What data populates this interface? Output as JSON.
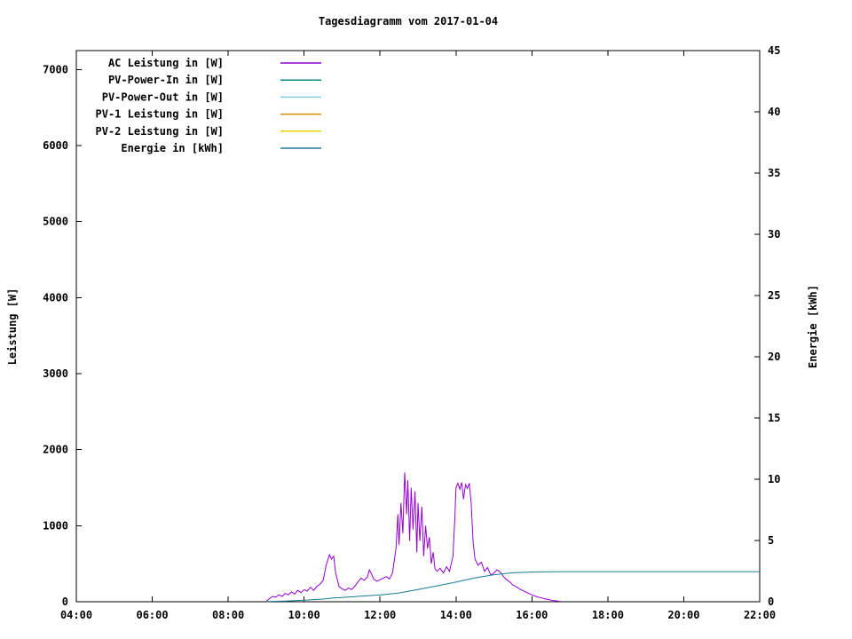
{
  "chart_data": {
    "type": "line",
    "title": "Tagesdiagramm vom 2017-01-04",
    "ylabel_left": "Leistung [W]",
    "ylabel_right": "Energie [kWh]",
    "grid": false,
    "legend_position": "top-left",
    "x_range_hours": [
      4,
      22
    ],
    "ylim_left": [
      0,
      7250
    ],
    "ylim_right": [
      0,
      45
    ],
    "x_ticks": [
      {
        "h": 4,
        "label": "04:00"
      },
      {
        "h": 6,
        "label": "06:00"
      },
      {
        "h": 8,
        "label": "08:00"
      },
      {
        "h": 10,
        "label": "10:00"
      },
      {
        "h": 12,
        "label": "12:00"
      },
      {
        "h": 14,
        "label": "14:00"
      },
      {
        "h": 16,
        "label": "16:00"
      },
      {
        "h": 18,
        "label": "18:00"
      },
      {
        "h": 20,
        "label": "20:00"
      },
      {
        "h": 22,
        "label": "22:00"
      }
    ],
    "y_ticks_left": [
      0,
      1000,
      2000,
      3000,
      4000,
      5000,
      6000,
      7000
    ],
    "y_ticks_right": [
      0,
      5,
      10,
      15,
      20,
      25,
      30,
      35,
      40,
      45
    ],
    "series": [
      {
        "name": "AC Leistung in [W]",
        "color": "#9400d3",
        "axis": "left",
        "points": [
          [
            9.0,
            5
          ],
          [
            9.08,
            40
          ],
          [
            9.17,
            70
          ],
          [
            9.25,
            60
          ],
          [
            9.33,
            90
          ],
          [
            9.42,
            70
          ],
          [
            9.5,
            110
          ],
          [
            9.58,
            90
          ],
          [
            9.67,
            130
          ],
          [
            9.75,
            100
          ],
          [
            9.83,
            150
          ],
          [
            9.92,
            120
          ],
          [
            10.0,
            160
          ],
          [
            10.08,
            140
          ],
          [
            10.17,
            190
          ],
          [
            10.25,
            150
          ],
          [
            10.33,
            200
          ],
          [
            10.42,
            230
          ],
          [
            10.5,
            280
          ],
          [
            10.58,
            480
          ],
          [
            10.67,
            620
          ],
          [
            10.72,
            560
          ],
          [
            10.78,
            600
          ],
          [
            10.83,
            380
          ],
          [
            10.92,
            200
          ],
          [
            11.0,
            170
          ],
          [
            11.08,
            150
          ],
          [
            11.17,
            180
          ],
          [
            11.25,
            160
          ],
          [
            11.33,
            200
          ],
          [
            11.42,
            260
          ],
          [
            11.5,
            310
          ],
          [
            11.58,
            280
          ],
          [
            11.67,
            330
          ],
          [
            11.72,
            420
          ],
          [
            11.78,
            360
          ],
          [
            11.83,
            300
          ],
          [
            11.92,
            270
          ],
          [
            12.0,
            290
          ],
          [
            12.08,
            310
          ],
          [
            12.17,
            330
          ],
          [
            12.25,
            300
          ],
          [
            12.33,
            380
          ],
          [
            12.42,
            700
          ],
          [
            12.47,
            1150
          ],
          [
            12.5,
            750
          ],
          [
            12.55,
            1300
          ],
          [
            12.6,
            900
          ],
          [
            12.65,
            1700
          ],
          [
            12.7,
            1150
          ],
          [
            12.73,
            1600
          ],
          [
            12.78,
            800
          ],
          [
            12.82,
            1500
          ],
          [
            12.87,
            950
          ],
          [
            12.92,
            1450
          ],
          [
            12.97,
            650
          ],
          [
            13.0,
            1300
          ],
          [
            13.05,
            800
          ],
          [
            13.1,
            1250
          ],
          [
            13.15,
            600
          ],
          [
            13.2,
            1000
          ],
          [
            13.25,
            700
          ],
          [
            13.3,
            850
          ],
          [
            13.35,
            500
          ],
          [
            13.4,
            650
          ],
          [
            13.45,
            430
          ],
          [
            13.5,
            400
          ],
          [
            13.58,
            440
          ],
          [
            13.67,
            380
          ],
          [
            13.75,
            460
          ],
          [
            13.83,
            400
          ],
          [
            13.92,
            600
          ],
          [
            13.97,
            1100
          ],
          [
            14.0,
            1500
          ],
          [
            14.05,
            1560
          ],
          [
            14.1,
            1480
          ],
          [
            14.15,
            1570
          ],
          [
            14.2,
            1350
          ],
          [
            14.25,
            1540
          ],
          [
            14.3,
            1490
          ],
          [
            14.35,
            1560
          ],
          [
            14.4,
            1300
          ],
          [
            14.45,
            800
          ],
          [
            14.5,
            560
          ],
          [
            14.58,
            480
          ],
          [
            14.67,
            520
          ],
          [
            14.75,
            400
          ],
          [
            14.83,
            450
          ],
          [
            14.92,
            350
          ],
          [
            15.0,
            380
          ],
          [
            15.08,
            420
          ],
          [
            15.17,
            390
          ],
          [
            15.25,
            330
          ],
          [
            15.33,
            290
          ],
          [
            15.42,
            260
          ],
          [
            15.5,
            220
          ],
          [
            15.58,
            200
          ],
          [
            15.67,
            170
          ],
          [
            15.75,
            150
          ],
          [
            15.83,
            130
          ],
          [
            15.92,
            110
          ],
          [
            16.0,
            90
          ],
          [
            16.08,
            75
          ],
          [
            16.17,
            60
          ],
          [
            16.25,
            50
          ],
          [
            16.33,
            40
          ],
          [
            16.42,
            30
          ],
          [
            16.5,
            22
          ],
          [
            16.58,
            15
          ],
          [
            16.67,
            8
          ],
          [
            16.75,
            3
          ]
        ]
      },
      {
        "name": "PV-Power-In in [W]",
        "color": "#008b8b",
        "axis": "left",
        "points": []
      },
      {
        "name": "PV-Power-Out in [W]",
        "color": "#7fd0f0",
        "axis": "left",
        "points": []
      },
      {
        "name": "PV-1 Leistung in [W]",
        "color": "#d88c00",
        "axis": "left",
        "points": []
      },
      {
        "name": "PV-2 Leistung in [W]",
        "color": "#e6d400",
        "axis": "left",
        "points": []
      },
      {
        "name": "Energie in [kWh]",
        "color": "#1a7a99",
        "axis": "right",
        "points": [
          [
            9.0,
            0.02
          ],
          [
            9.5,
            0.06
          ],
          [
            10.0,
            0.12
          ],
          [
            10.5,
            0.22
          ],
          [
            10.75,
            0.3
          ],
          [
            11.0,
            0.35
          ],
          [
            11.5,
            0.45
          ],
          [
            12.0,
            0.55
          ],
          [
            12.5,
            0.72
          ],
          [
            13.0,
            1.0
          ],
          [
            13.5,
            1.3
          ],
          [
            14.0,
            1.6
          ],
          [
            14.5,
            1.95
          ],
          [
            15.0,
            2.2
          ],
          [
            15.5,
            2.36
          ],
          [
            16.0,
            2.43
          ],
          [
            16.5,
            2.45
          ],
          [
            17.0,
            2.46
          ],
          [
            22.0,
            2.46
          ]
        ]
      }
    ]
  }
}
